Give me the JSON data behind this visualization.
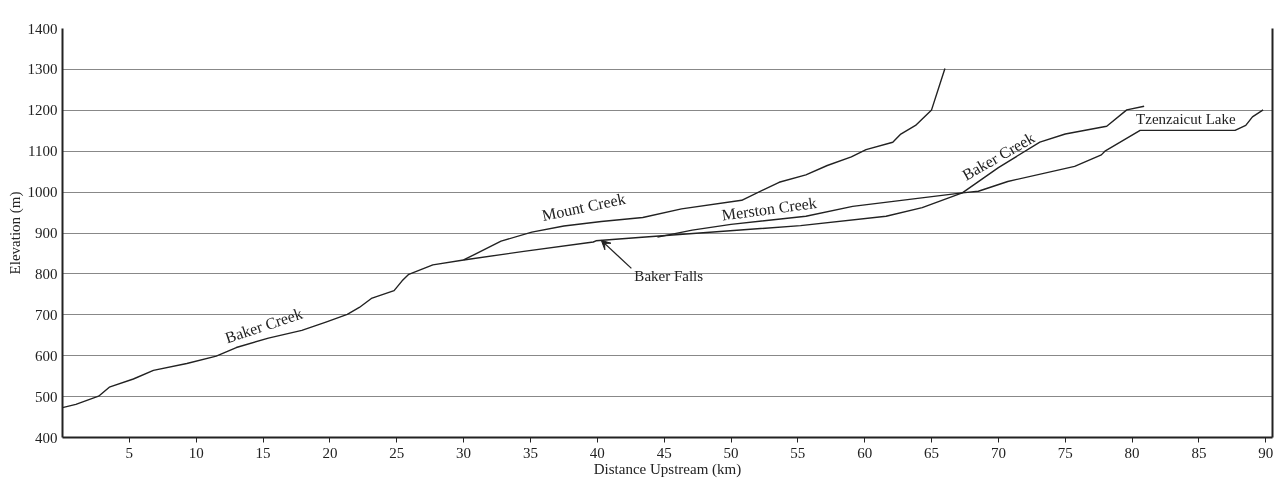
{
  "chart_data": {
    "type": "line",
    "xlabel": "Distance Upstream (km)",
    "ylabel": "Elevation (m)",
    "xlim": [
      0,
      90.5
    ],
    "ylim": [
      400,
      1400
    ],
    "xticks": [
      5,
      10,
      15,
      20,
      25,
      30,
      35,
      40,
      45,
      50,
      55,
      60,
      65,
      70,
      75,
      80,
      85,
      90
    ],
    "yticks": [
      400,
      500,
      600,
      700,
      800,
      900,
      1000,
      1100,
      1200,
      1300,
      1400
    ],
    "grid": "y",
    "marker": "none",
    "line_style": "solid",
    "series": [
      {
        "color": "#222222",
        "x": [
          0,
          1.0,
          2.7,
          3.5,
          5.3,
          6.8,
          9.3,
          11.5,
          13.0,
          15.4,
          17.9,
          19.7,
          21.3,
          22.2,
          23.1,
          24.8,
          25.4,
          25.9,
          27.7,
          30.0,
          34.5,
          39.7,
          39.9,
          43.1,
          55.2,
          61.6,
          64.3,
          67.3,
          70.0,
          73.1,
          75.0,
          78.1,
          79.6,
          80.9
        ],
        "values": [
          473,
          481,
          501,
          523,
          543,
          564,
          581,
          599,
          620,
          643,
          662,
          682,
          701,
          718,
          740,
          759,
          783,
          799,
          822,
          834,
          855,
          878,
          881,
          889,
          918,
          941,
          962,
          998,
          1060,
          1122,
          1142,
          1161,
          1201,
          1210
        ]
      },
      {
        "color": "#222222",
        "x": [
          30.0,
          32.8,
          35.1,
          37.5,
          40.3,
          43.4,
          46.3,
          50.8,
          53.6,
          55.6,
          57.2,
          59.0,
          60.1,
          62.1,
          62.7,
          63.8,
          65.0,
          66.0
        ],
        "values": [
          834,
          880,
          902,
          917,
          928,
          938,
          959,
          980,
          1024,
          1042,
          1065,
          1086,
          1104,
          1122,
          1142,
          1163,
          1201,
          1302
        ]
      },
      {
        "color": "#222222",
        "x": [
          44.5,
          47.1,
          50.0,
          55.6,
          59.1,
          67.3,
          68.5,
          70.7,
          75.7,
          77.7,
          78.0,
          80.6,
          87.7,
          88.5,
          89.0,
          89.8
        ],
        "values": [
          890,
          907,
          921,
          941,
          965,
          998,
          1002,
          1026,
          1063,
          1091,
          1101,
          1151,
          1151,
          1163,
          1184,
          1201
        ]
      }
    ],
    "annotations": [
      {
        "text": "Baker Creek",
        "x": 12.4,
        "y": 623
      },
      {
        "text": "Mount Creek",
        "x": 36.0,
        "y": 922
      },
      {
        "text": "Merston Creek",
        "x": 49.4,
        "y": 923
      },
      {
        "text": "Baker Creek",
        "x": 67.7,
        "y": 1021
      },
      {
        "text": "Tzenzaicut Lake",
        "x": 80.3,
        "y": 1158
      },
      {
        "text": "Baker Falls",
        "x": 40.3,
        "y": 882
      }
    ]
  }
}
